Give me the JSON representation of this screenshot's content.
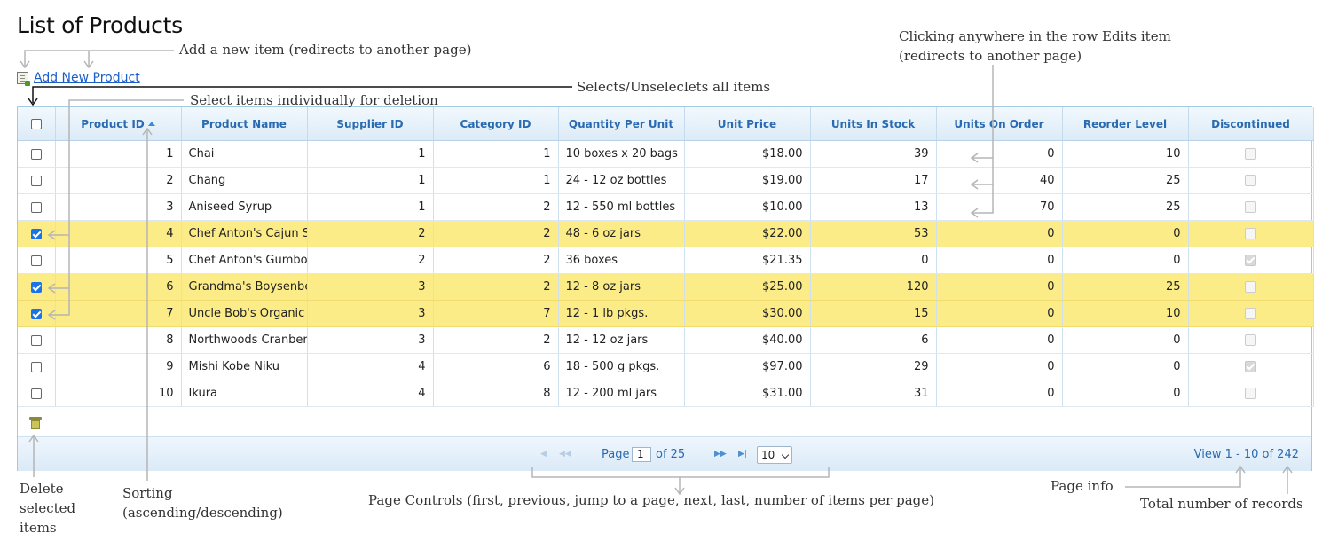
{
  "page": {
    "title": "List of Products",
    "add_label": "Add New Product"
  },
  "columns": [
    "Product ID",
    "Product Name",
    "Supplier ID",
    "Category ID",
    "Quantity Per Unit",
    "Unit Price",
    "Units In Stock",
    "Units On Order",
    "Reorder Level",
    "Discontinued"
  ],
  "rows": [
    {
      "id": "1",
      "name": "Chai",
      "supplier": "1",
      "category": "1",
      "qty": "10 boxes x 20 bags",
      "price": "$18.00",
      "stock": "39",
      "order": "0",
      "reorder": "10",
      "disc": false,
      "selected": false
    },
    {
      "id": "2",
      "name": "Chang",
      "supplier": "1",
      "category": "1",
      "qty": "24 - 12 oz bottles",
      "price": "$19.00",
      "stock": "17",
      "order": "40",
      "reorder": "25",
      "disc": false,
      "selected": false
    },
    {
      "id": "3",
      "name": "Aniseed Syrup",
      "supplier": "1",
      "category": "2",
      "qty": "12 - 550 ml bottles",
      "price": "$10.00",
      "stock": "13",
      "order": "70",
      "reorder": "25",
      "disc": false,
      "selected": false
    },
    {
      "id": "4",
      "name": "Chef Anton's Cajun S",
      "supplier": "2",
      "category": "2",
      "qty": "48 - 6 oz jars",
      "price": "$22.00",
      "stock": "53",
      "order": "0",
      "reorder": "0",
      "disc": false,
      "selected": true
    },
    {
      "id": "5",
      "name": "Chef Anton's Gumbo",
      "supplier": "2",
      "category": "2",
      "qty": "36 boxes",
      "price": "$21.35",
      "stock": "0",
      "order": "0",
      "reorder": "0",
      "disc": true,
      "selected": false
    },
    {
      "id": "6",
      "name": "Grandma's Boysenbe",
      "supplier": "3",
      "category": "2",
      "qty": "12 - 8 oz jars",
      "price": "$25.00",
      "stock": "120",
      "order": "0",
      "reorder": "25",
      "disc": false,
      "selected": true
    },
    {
      "id": "7",
      "name": "Uncle Bob's Organic",
      "supplier": "3",
      "category": "7",
      "qty": "12 - 1 lb pkgs.",
      "price": "$30.00",
      "stock": "15",
      "order": "0",
      "reorder": "10",
      "disc": false,
      "selected": true
    },
    {
      "id": "8",
      "name": "Northwoods Cranber",
      "supplier": "3",
      "category": "2",
      "qty": "12 - 12 oz jars",
      "price": "$40.00",
      "stock": "6",
      "order": "0",
      "reorder": "0",
      "disc": false,
      "selected": false
    },
    {
      "id": "9",
      "name": "Mishi Kobe Niku",
      "supplier": "4",
      "category": "6",
      "qty": "18 - 500 g pkgs.",
      "price": "$97.00",
      "stock": "29",
      "order": "0",
      "reorder": "0",
      "disc": true,
      "selected": false
    },
    {
      "id": "10",
      "name": "Ikura",
      "supplier": "4",
      "category": "8",
      "qty": "12 - 200 ml jars",
      "price": "$31.00",
      "stock": "31",
      "order": "0",
      "reorder": "0",
      "disc": false,
      "selected": false
    }
  ],
  "pager": {
    "page_label": "Page",
    "page_value": "1",
    "of_label": "of 25",
    "per_page": "10",
    "view_info": "View 1 - 10 of 242"
  },
  "annotations": {
    "add_item": "Add a new item (redirects to another page)",
    "select_individual": "Select items individually for deletion",
    "select_all": "Selects/Unseleclets all items",
    "row_edit_1": "Clicking anywhere in the row Edits item",
    "row_edit_2": "(redirects to another page)",
    "delete_1": "Delete",
    "delete_2": "selected",
    "delete_3": "items",
    "sorting_1": "Sorting",
    "sorting_2": "(ascending/descending)",
    "page_controls": "Page Controls (first, previous, jump to a page, next, last, number of items per page)",
    "page_info": "Page info",
    "total_records": "Total number of records"
  }
}
